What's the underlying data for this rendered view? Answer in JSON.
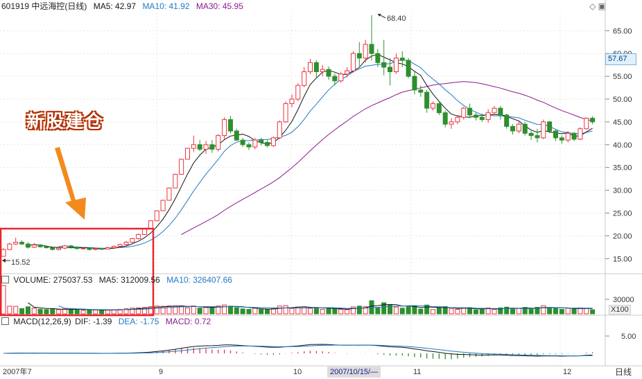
{
  "header": {
    "stock": "601919 中远海控(日线)",
    "ma5": "MA5: 42.97",
    "ma10": "MA10: 41.92",
    "ma30": "MA30: 45.95",
    "corner_icons": "◇ ▣"
  },
  "annotation": {
    "title": "新股建仓"
  },
  "price_axis": {
    "ticks": [
      "65.00",
      "60.00",
      "55.00",
      "50.00",
      "45.00",
      "40.00",
      "35.00",
      "30.00",
      "25.00",
      "20.00",
      "15.00"
    ],
    "current": "57.67",
    "high_label": "68.40",
    "low_label": "15.52"
  },
  "volume": {
    "header_volume": "VOLUME: 275037.53",
    "header_ma5": "MA5: 312009.56",
    "header_ma10": "MA10: 326407.66",
    "tick": "30000",
    "unit": "X100"
  },
  "macd": {
    "header_name": "MACD(12,26,9)",
    "header_dif": "DIF: -1.39",
    "header_dea": "DEA: -1.75",
    "header_macd": "MACD: 0.72",
    "tick": "5.00"
  },
  "x_axis": {
    "ticks": [
      "2007年7",
      "9",
      "10",
      "11",
      "12"
    ],
    "cursor_date": "2007/10/15/—",
    "period": "日线"
  },
  "colors": {
    "up": "#e8333b",
    "down": "#2d8f2d",
    "ma5": "#111111",
    "ma10": "#1f78c8",
    "ma30": "#8b1a8b",
    "box": "#e8262c",
    "arrow": "#f28a1e"
  },
  "chart_data": {
    "type": "candlestick",
    "price_ticks": [
      65,
      60,
      55,
      50,
      45,
      40,
      35,
      30,
      25,
      20,
      15
    ],
    "ylim": [
      12,
      69
    ],
    "high": 68.4,
    "low": 15.52,
    "last": 57.67,
    "candles": [
      [
        15.5,
        17.0,
        15.5,
        17.3
      ],
      [
        17.0,
        18.2,
        16.9,
        18.5
      ],
      [
        18.2,
        18.6,
        18.0,
        19.6
      ],
      [
        18.6,
        18.2,
        18.0,
        19.0
      ],
      [
        18.2,
        17.5,
        17.2,
        18.6
      ],
      [
        17.5,
        18.0,
        17.3,
        18.4
      ],
      [
        18.0,
        17.6,
        17.4,
        18.2
      ],
      [
        17.6,
        17.4,
        17.2,
        17.9
      ],
      [
        17.4,
        17.0,
        16.8,
        17.6
      ],
      [
        17.0,
        17.3,
        16.8,
        17.5
      ],
      [
        17.3,
        17.8,
        17.1,
        18.0
      ],
      [
        17.8,
        17.5,
        17.2,
        18.0
      ],
      [
        17.5,
        17.2,
        17.0,
        17.7
      ],
      [
        17.2,
        17.3,
        17.0,
        17.5
      ],
      [
        17.3,
        17.0,
        16.8,
        17.4
      ],
      [
        17.0,
        17.2,
        16.8,
        17.4
      ],
      [
        17.2,
        17.1,
        16.9,
        17.4
      ],
      [
        17.1,
        17.4,
        17.0,
        17.6
      ],
      [
        17.4,
        17.7,
        17.2,
        17.9
      ],
      [
        17.7,
        18.1,
        17.5,
        18.3
      ],
      [
        18.1,
        18.6,
        17.9,
        18.9
      ],
      [
        18.6,
        19.4,
        18.4,
        19.6
      ],
      [
        19.4,
        20.3,
        19.2,
        20.5
      ],
      [
        20.3,
        21.5,
        20.2,
        21.7
      ],
      [
        21.5,
        23.3,
        21.5,
        23.4
      ],
      [
        23.3,
        25.5,
        23.3,
        25.6
      ],
      [
        25.5,
        27.8,
        25.5,
        27.9
      ],
      [
        27.8,
        30.5,
        27.8,
        30.6
      ],
      [
        30.5,
        33.5,
        30.5,
        33.6
      ],
      [
        33.5,
        36.8,
        33.5,
        36.9
      ],
      [
        36.8,
        39.2,
        36.8,
        39.3
      ],
      [
        39.2,
        40.0,
        38.4,
        42.0
      ],
      [
        40.0,
        39.0,
        38.6,
        41.0
      ],
      [
        39.0,
        40.0,
        38.0,
        40.8
      ],
      [
        40.0,
        39.0,
        38.2,
        41.0
      ],
      [
        39.0,
        42.0,
        38.5,
        42.3
      ],
      [
        42.0,
        45.5,
        41.2,
        46.0
      ],
      [
        45.5,
        43.0,
        42.5,
        46.3
      ],
      [
        43.0,
        41.0,
        40.8,
        43.5
      ],
      [
        41.0,
        40.0,
        39.5,
        41.5
      ],
      [
        40.0,
        39.5,
        38.8,
        40.5
      ],
      [
        39.5,
        41.0,
        39.0,
        41.5
      ],
      [
        41.0,
        40.5,
        39.8,
        41.5
      ],
      [
        40.5,
        39.8,
        39.4,
        41.0
      ],
      [
        39.8,
        41.5,
        39.5,
        41.8
      ],
      [
        41.5,
        45.0,
        41.2,
        45.3
      ],
      [
        45.0,
        49.0,
        44.8,
        49.5
      ],
      [
        49.0,
        50.0,
        48.2,
        51.0
      ],
      [
        50.0,
        53.0,
        49.5,
        53.5
      ],
      [
        53.0,
        56.0,
        52.6,
        57.0
      ],
      [
        56.0,
        58.0,
        55.5,
        58.8
      ],
      [
        58.0,
        56.0,
        54.5,
        58.5
      ],
      [
        56.0,
        56.5,
        55.0,
        57.5
      ],
      [
        56.5,
        55.0,
        54.2,
        57.2
      ],
      [
        55.0,
        54.0,
        53.0,
        55.6
      ],
      [
        54.0,
        55.5,
        53.6,
        56.0
      ],
      [
        55.5,
        56.2,
        54.8,
        57.0
      ],
      [
        56.2,
        60.0,
        55.8,
        60.5
      ],
      [
        60.0,
        59.0,
        57.2,
        62.5
      ],
      [
        59.0,
        62.0,
        58.0,
        63.0
      ],
      [
        62.0,
        60.0,
        58.5,
        68.4
      ],
      [
        60.0,
        58.0,
        57.0,
        61.0
      ],
      [
        58.0,
        57.0,
        55.2,
        63.0
      ],
      [
        57.0,
        56.0,
        53.0,
        59.0
      ],
      [
        56.0,
        59.0,
        55.5,
        60.0
      ],
      [
        59.0,
        58.5,
        57.0,
        60.5
      ],
      [
        58.5,
        55.0,
        54.6,
        59.0
      ],
      [
        55.0,
        52.0,
        51.0,
        56.0
      ],
      [
        52.0,
        51.5,
        50.5,
        53.0
      ],
      [
        51.5,
        48.0,
        47.0,
        52.0
      ],
      [
        48.0,
        49.0,
        47.5,
        49.5
      ],
      [
        49.0,
        47.0,
        46.5,
        49.5
      ],
      [
        47.0,
        44.5,
        43.8,
        47.5
      ],
      [
        44.5,
        45.0,
        43.5,
        45.8
      ],
      [
        45.0,
        46.0,
        44.5,
        46.5
      ],
      [
        46.0,
        48.0,
        45.5,
        48.3
      ],
      [
        48.0,
        46.5,
        45.8,
        49.0
      ],
      [
        46.5,
        46.0,
        45.3,
        47.0
      ],
      [
        46.0,
        45.5,
        45.0,
        46.8
      ],
      [
        45.5,
        47.0,
        44.8,
        47.8
      ],
      [
        47.0,
        48.0,
        46.5,
        48.5
      ],
      [
        48.0,
        46.5,
        45.5,
        48.5
      ],
      [
        46.5,
        44.0,
        43.5,
        46.8
      ],
      [
        44.0,
        43.0,
        42.2,
        44.5
      ],
      [
        43.0,
        44.5,
        42.5,
        45.0
      ],
      [
        44.5,
        42.5,
        42.0,
        45.0
      ],
      [
        42.5,
        42.0,
        41.0,
        43.0
      ],
      [
        42.0,
        41.5,
        40.5,
        43.5
      ],
      [
        41.5,
        45.0,
        41.2,
        45.5
      ],
      [
        45.0,
        43.0,
        42.5,
        45.2
      ],
      [
        43.0,
        41.5,
        40.8,
        43.3
      ],
      [
        41.5,
        41.0,
        40.2,
        42.0
      ],
      [
        41.0,
        42.5,
        40.5,
        43.0
      ],
      [
        42.5,
        41.2,
        40.8,
        42.8
      ],
      [
        41.2,
        43.5,
        41.0,
        43.8
      ],
      [
        43.5,
        45.8,
        43.3,
        46.0
      ],
      [
        45.8,
        45.0,
        44.5,
        46.2
      ]
    ],
    "volume_tick": 30000,
    "macd_tick": 5
  }
}
